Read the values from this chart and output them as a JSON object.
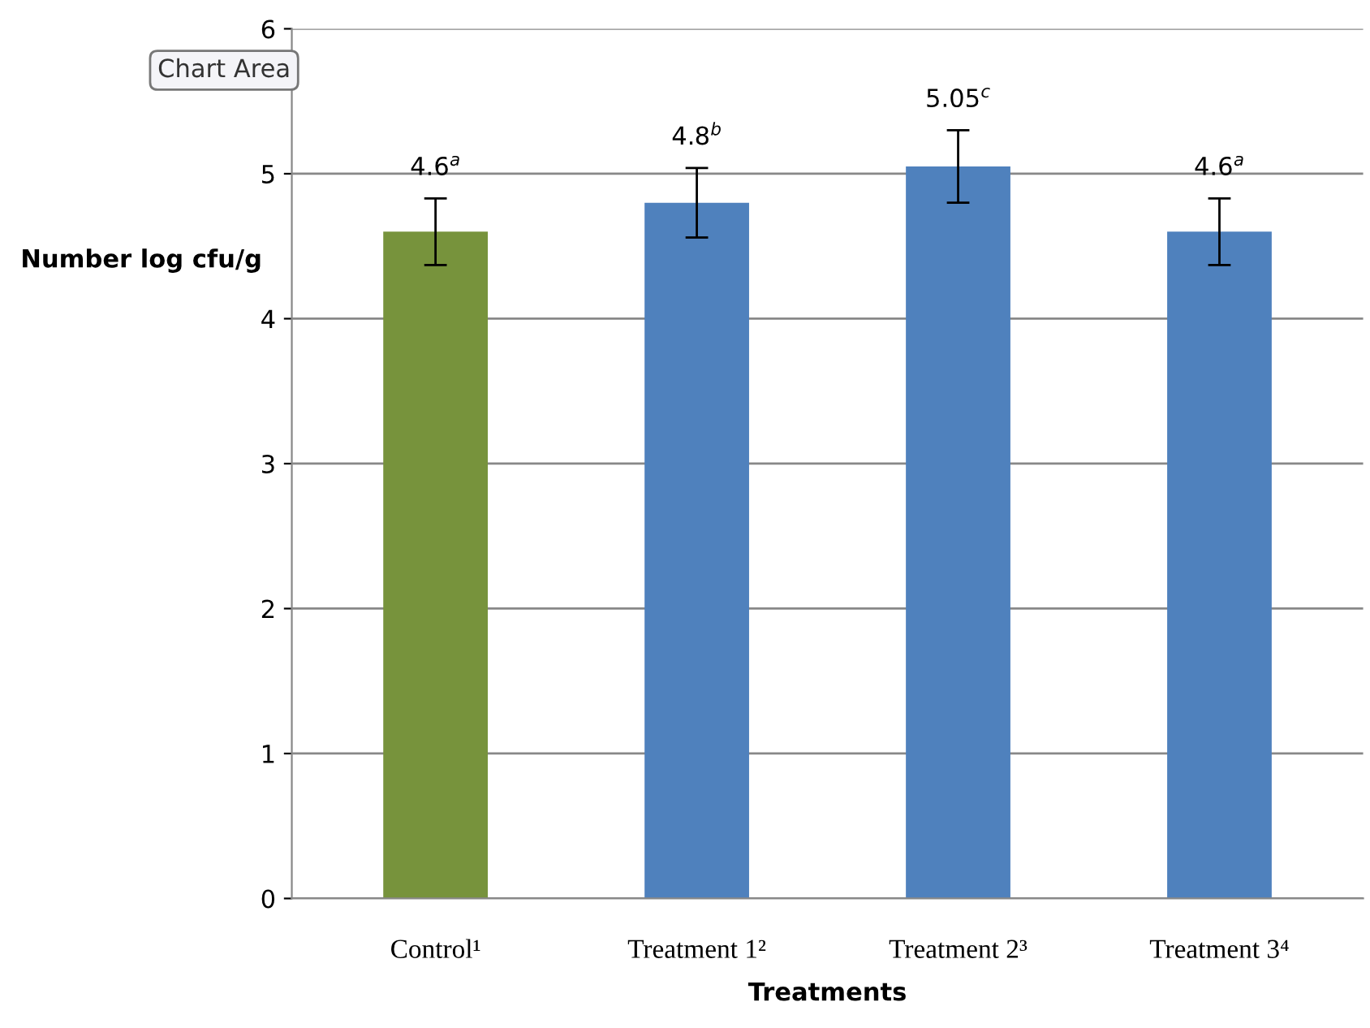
{
  "chart_data": {
    "type": "bar",
    "categories": [
      "Control¹",
      "Treatment 1²",
      "Treatment 2³",
      "Treatment 3⁴"
    ],
    "values": [
      4.6,
      4.8,
      5.05,
      4.6
    ],
    "colors": [
      "#77933c",
      "#4f81bd",
      "#4f81bd",
      "#4f81bd"
    ],
    "errors": [
      0.23,
      0.24,
      0.25,
      0.23
    ],
    "value_labels": [
      "4.6$^{a}$",
      "4.8$^{b}$",
      "5.05$^{c}$",
      "4.6$^{a}$"
    ],
    "xlabel": "Treatments",
    "ylabel": "Number log cfu/g",
    "ylim": [
      0,
      6
    ],
    "yticks": [
      0,
      1,
      2,
      3,
      4,
      5,
      6
    ],
    "grid": "y",
    "annotations": [
      "Chart Area"
    ]
  }
}
